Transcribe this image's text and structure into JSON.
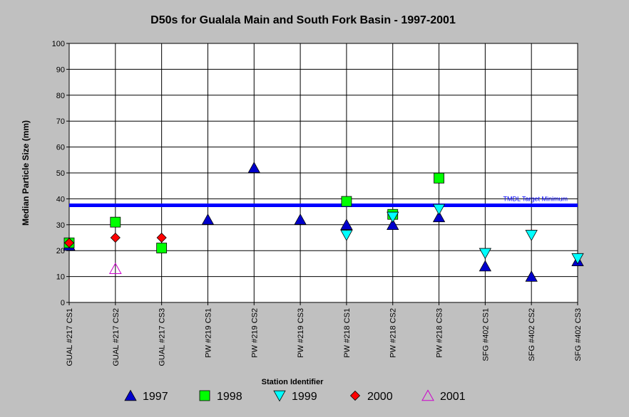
{
  "chart_data": {
    "type": "scatter",
    "title": "D50s for Gualala Main and South Fork Basin - 1997-2001",
    "xlabel": "Station Identifier",
    "ylabel": "Median Particle Size (mm)",
    "ylim": [
      0,
      100
    ],
    "yticks": [
      0,
      10,
      20,
      30,
      40,
      50,
      60,
      70,
      80,
      90,
      100
    ],
    "categories": [
      "GUAL #217 CS1",
      "GUAL #217 CS2",
      "GUAL #217 CS3",
      "PW #219 CS1",
      "PW #219 CS2",
      "PW #219 CS3",
      "PW #218 CS1",
      "PW #218 CS2",
      "PW #218 CS3",
      "SFG #402 CS1",
      "SFG #402 CS2",
      "SFG #402 CS3"
    ],
    "grid": true,
    "legend_position": "bottom",
    "reference_line": {
      "label": "TMDL Target Minimum",
      "value": 37.5,
      "color": "#0000ff"
    },
    "series": [
      {
        "name": "1997",
        "marker": "triangle-up",
        "color": "#0000cc",
        "filled": true,
        "values": [
          22,
          null,
          null,
          32,
          52,
          32,
          30,
          30,
          33,
          14,
          10,
          16
        ]
      },
      {
        "name": "1998",
        "marker": "square",
        "color": "#00ff00",
        "filled": true,
        "values": [
          23,
          31,
          21,
          null,
          null,
          null,
          39,
          34,
          48,
          null,
          null,
          null
        ]
      },
      {
        "name": "1999",
        "marker": "triangle-down",
        "color": "#00ffff",
        "filled": true,
        "values": [
          null,
          null,
          null,
          null,
          null,
          null,
          26,
          33,
          36,
          19,
          26,
          17
        ]
      },
      {
        "name": "2000",
        "marker": "diamond",
        "color": "#ff0000",
        "filled": true,
        "values": [
          23,
          25,
          25,
          null,
          null,
          null,
          null,
          null,
          null,
          null,
          null,
          null
        ]
      },
      {
        "name": "2001",
        "marker": "triangle-up",
        "color": "#cc00cc",
        "filled": false,
        "values": [
          null,
          13,
          null,
          null,
          null,
          null,
          null,
          null,
          null,
          null,
          null,
          null
        ]
      }
    ]
  }
}
